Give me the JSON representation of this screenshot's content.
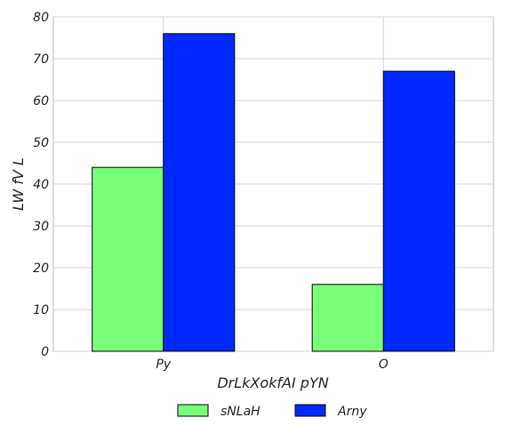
{
  "chart_data": {
    "type": "bar",
    "title": "",
    "xlabel": "DrLkXokfAI pYN",
    "ylabel": "LW fV L",
    "categories": [
      "Py",
      "O"
    ],
    "series": [
      {
        "name": "sNLaH",
        "values": [
          44,
          16
        ],
        "color": "#77ff77"
      },
      {
        "name": "Arny",
        "values": [
          76,
          67
        ],
        "color": "#0029ff"
      }
    ],
    "ylim": [
      0,
      80
    ],
    "yticks": [
      0,
      10,
      20,
      30,
      40,
      50,
      60,
      70,
      80
    ],
    "grid": true,
    "legend_position": "bottom-center"
  }
}
